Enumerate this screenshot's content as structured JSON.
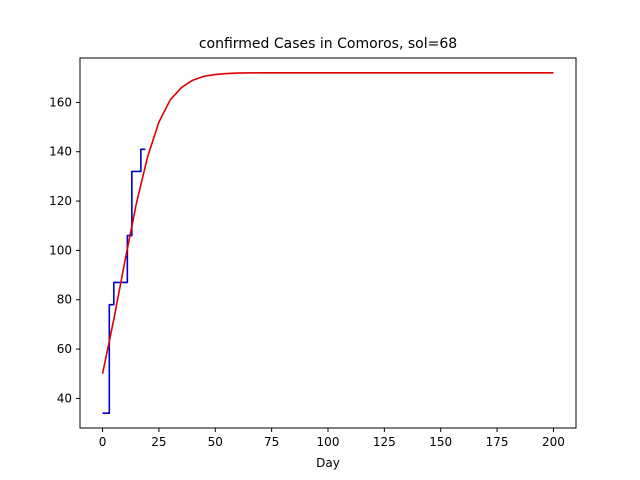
{
  "chart_data": {
    "type": "line",
    "title": "confirmed Cases in Comoros, sol=68",
    "xlabel": "Day",
    "ylabel": "",
    "xlim": [
      -10,
      210
    ],
    "ylim": [
      28,
      178
    ],
    "xticks": [
      0,
      25,
      50,
      75,
      100,
      125,
      150,
      175,
      200
    ],
    "yticks": [
      40,
      60,
      80,
      100,
      120,
      140,
      160
    ],
    "grid": false,
    "series": [
      {
        "color": "#0000cc",
        "style": "step",
        "x": [
          0,
          1,
          2,
          3,
          4,
          5,
          6,
          7,
          8,
          9,
          10,
          11,
          12,
          13,
          14,
          15,
          16,
          17,
          18,
          19
        ],
        "y": [
          34,
          34,
          34,
          78,
          78,
          87,
          87,
          87,
          87,
          87,
          87,
          106,
          106,
          132,
          132,
          132,
          132,
          141,
          141,
          141
        ]
      },
      {
        "color": "#dd0000",
        "style": "line",
        "x": [
          0,
          5,
          10,
          15,
          20,
          25,
          30,
          35,
          40,
          45,
          50,
          55,
          60,
          70,
          80,
          100,
          125,
          150,
          175,
          200
        ],
        "y": [
          50,
          72,
          96,
          119,
          138,
          152,
          161,
          166,
          169,
          170.6,
          171.3,
          171.7,
          171.9,
          172,
          172,
          172,
          172,
          172,
          172,
          172
        ]
      }
    ]
  }
}
